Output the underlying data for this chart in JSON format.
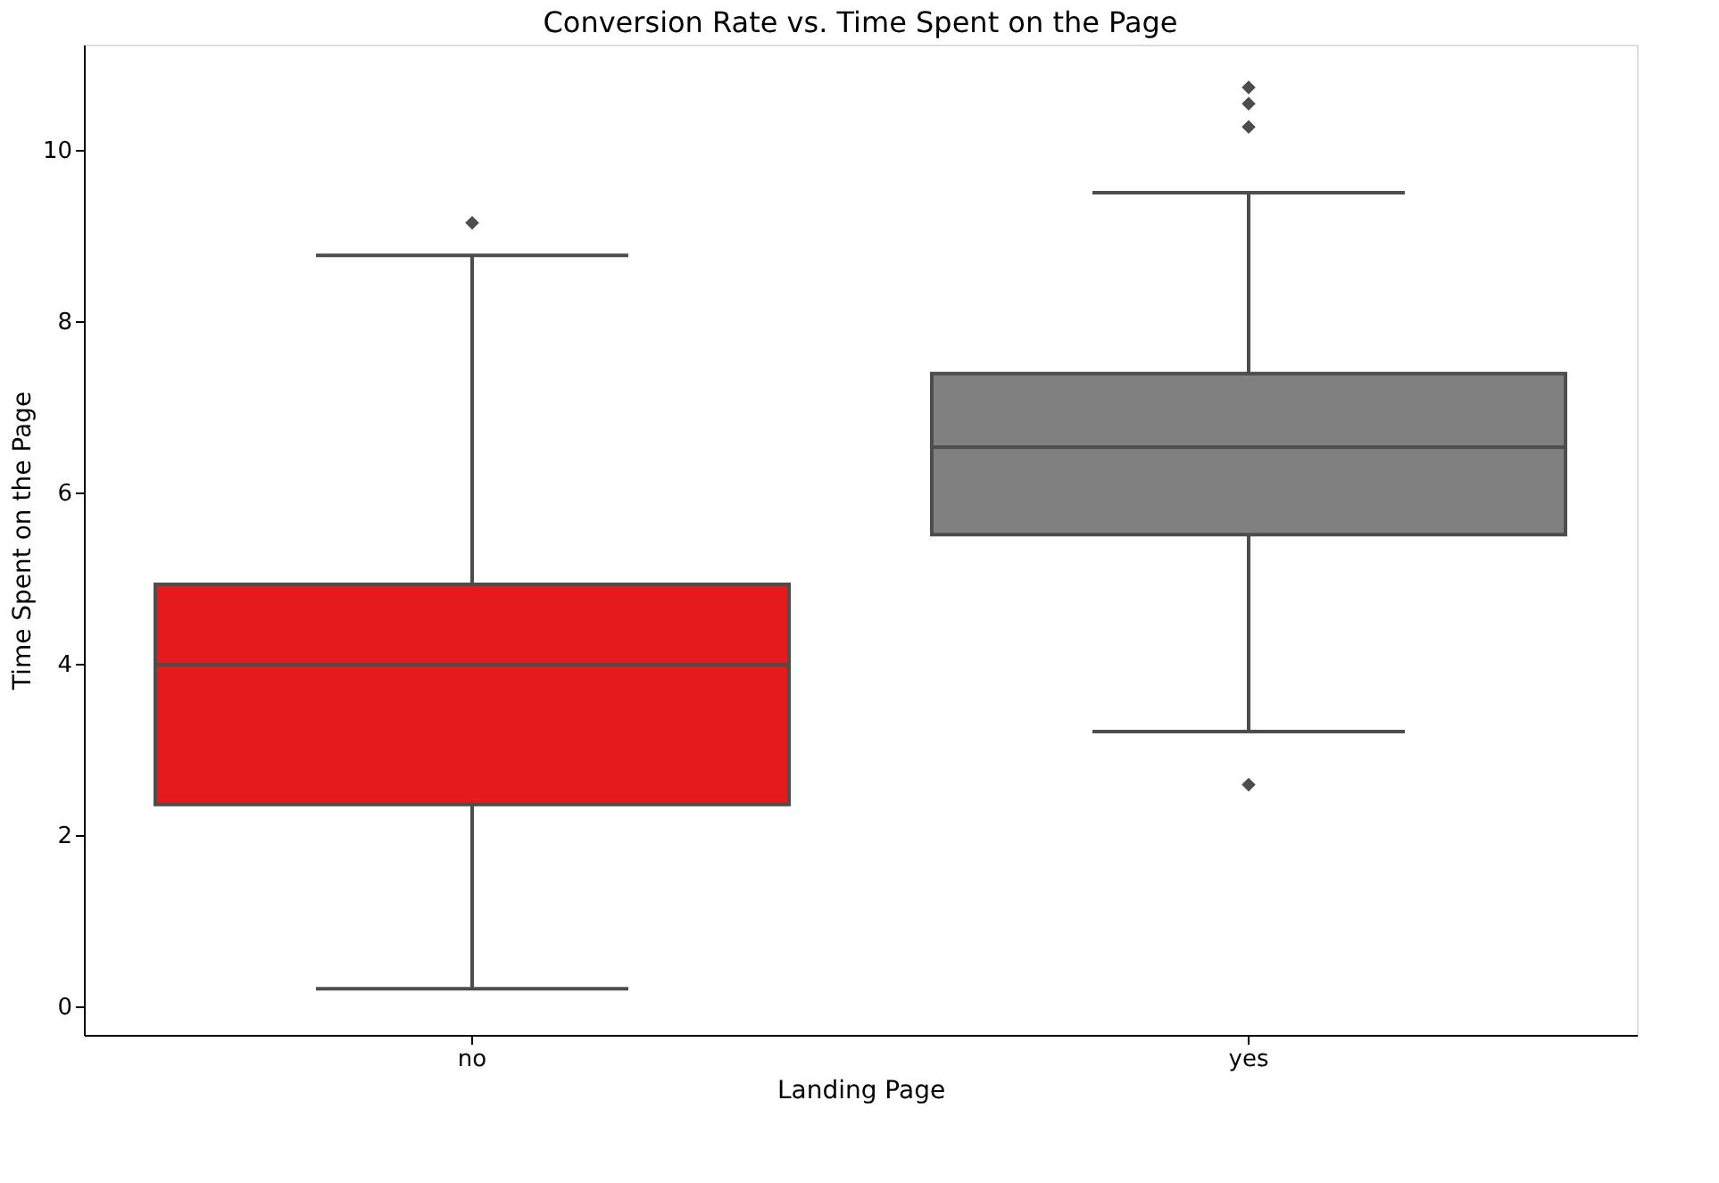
{
  "chart_data": {
    "type": "box",
    "title": "Conversion Rate vs. Time Spent on the Page",
    "xlabel": "Landing Page",
    "ylabel": "Time Spent on the Page",
    "categories": [
      "no",
      "yes"
    ],
    "colors": [
      "#e41a1c",
      "#808080"
    ],
    "boxes": [
      {
        "low": 0.21,
        "q1": 2.36,
        "median": 3.99,
        "q3": 4.93,
        "high": 8.77,
        "outliers": [
          9.15
        ]
      },
      {
        "low": 3.21,
        "q1": 5.51,
        "median": 6.53,
        "q3": 7.39,
        "high": 9.5,
        "outliers": [
          2.59,
          10.27,
          10.54,
          10.73
        ]
      }
    ],
    "ylim": [
      -0.33,
      11.23
    ],
    "yticks": [
      0,
      2,
      4,
      6,
      8,
      10
    ],
    "grid": false,
    "marker": "diamond"
  }
}
